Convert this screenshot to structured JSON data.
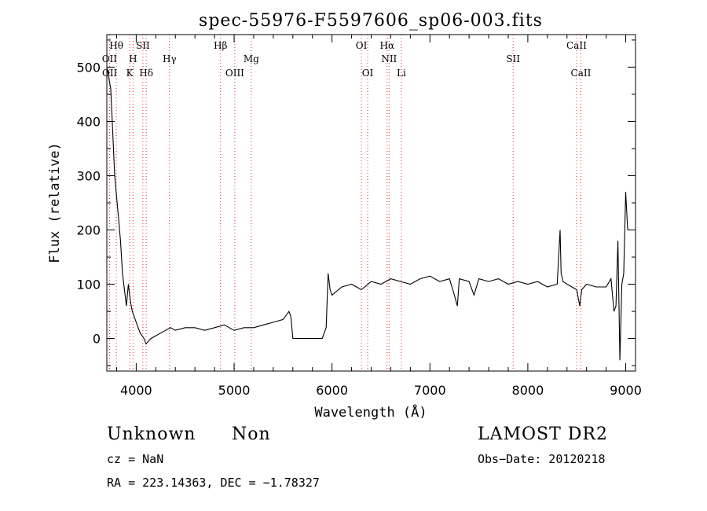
{
  "chart_data": {
    "type": "line",
    "title": "spec-55976-F5597606_sp06-003.fits",
    "xlabel": "Wavelength (Å)",
    "ylabel": "Flux (relative)",
    "xlim": [
      3700,
      9100
    ],
    "ylim": [
      -60,
      560
    ],
    "xticks": [
      4000,
      5000,
      6000,
      7000,
      8000,
      9000
    ],
    "yticks": [
      0,
      100,
      200,
      300,
      400,
      500
    ],
    "grid": false,
    "series": [
      {
        "x": [
          3700,
          3720,
          3740,
          3760,
          3780,
          3800,
          3820,
          3840,
          3860,
          3880,
          3900,
          3920,
          3940,
          3960,
          3980,
          4000,
          4020,
          4040,
          4060,
          4080,
          4100,
          4150,
          4200,
          4250,
          4300,
          4350,
          4400,
          4500,
          4600,
          4700,
          4800,
          4900,
          5000,
          5100,
          5200,
          5300,
          5400,
          5500,
          5560,
          5580,
          5600,
          5900,
          5940,
          5960,
          5980,
          6000,
          6100,
          6200,
          6300,
          6400,
          6500,
          6600,
          6700,
          6800,
          6900,
          7000,
          7100,
          7200,
          7250,
          7280,
          7300,
          7400,
          7450,
          7500,
          7600,
          7700,
          7800,
          7900,
          8000,
          8100,
          8200,
          8300,
          8330,
          8340,
          8360,
          8400,
          8450,
          8500,
          8530,
          8550,
          8600,
          8700,
          8800,
          8850,
          8880,
          8900,
          8920,
          8940,
          8960,
          8980,
          9000,
          9020
        ],
        "y": [
          500,
          480,
          460,
          380,
          300,
          260,
          220,
          180,
          120,
          90,
          60,
          100,
          70,
          50,
          40,
          30,
          20,
          10,
          5,
          0,
          -10,
          0,
          5,
          10,
          15,
          20,
          15,
          20,
          20,
          15,
          20,
          25,
          15,
          20,
          20,
          25,
          30,
          35,
          50,
          40,
          0,
          0,
          20,
          120,
          90,
          80,
          95,
          100,
          90,
          105,
          100,
          110,
          105,
          100,
          110,
          115,
          105,
          110,
          80,
          60,
          110,
          105,
          80,
          110,
          105,
          110,
          100,
          105,
          100,
          105,
          95,
          100,
          200,
          120,
          105,
          100,
          95,
          90,
          60,
          90,
          100,
          95,
          95,
          110,
          50,
          60,
          180,
          -40,
          100,
          120,
          270,
          200
        ]
      }
    ],
    "lines": [
      {
        "label": "Hθ",
        "x": 3797,
        "row": 1,
        "color": "#000000"
      },
      {
        "label": "OII",
        "x": 3727,
        "row": 2,
        "color": "#000000"
      },
      {
        "label": "OII",
        "x": 3729,
        "row": 3,
        "color": "#000000"
      },
      {
        "label": "SII",
        "x": 4068,
        "row": 1,
        "color": "#000000"
      },
      {
        "label": "H",
        "x": 3968,
        "row": 2,
        "color": "#000000"
      },
      {
        "label": "K",
        "x": 3934,
        "row": 3,
        "color": "#000000"
      },
      {
        "label": "Hδ",
        "x": 4102,
        "row": 3,
        "color": "#000000"
      },
      {
        "label": "Hγ",
        "x": 4340,
        "row": 2,
        "color": "#000000"
      },
      {
        "label": "Hβ",
        "x": 4861,
        "row": 1,
        "color": "#000000"
      },
      {
        "label": "Mg",
        "x": 5175,
        "row": 2,
        "color": "#000000"
      },
      {
        "label": "OIII",
        "x": 5007,
        "row": 3,
        "color": "#000000"
      },
      {
        "label": "OI",
        "x": 6300,
        "row": 1,
        "color": "#000000"
      },
      {
        "label": "Hα",
        "x": 6563,
        "row": 1,
        "color": "#000000"
      },
      {
        "label": "NII",
        "x": 6583,
        "row": 2,
        "color": "#000000"
      },
      {
        "label": "OI",
        "x": 6364,
        "row": 3,
        "color": "#000000"
      },
      {
        "label": "Li",
        "x": 6708,
        "row": 3,
        "color": "#000000"
      },
      {
        "label": "SII",
        "x": 7850,
        "row": 2,
        "color": "#000000"
      },
      {
        "label": "CaII",
        "x": 8498,
        "row": 1,
        "color": "#000000"
      },
      {
        "label": "CaII",
        "x": 8542,
        "row": 3,
        "color": "#000000"
      }
    ],
    "line_marker_color": "#e03030"
  },
  "info": {
    "class": "Unknown",
    "subclass": "Non",
    "cz": "cz = NaN",
    "coords": "RA = 223.14363, DEC =  −1.78327",
    "survey": "LAMOST DR2",
    "obs_date": "Obs−Date: 20120218"
  }
}
